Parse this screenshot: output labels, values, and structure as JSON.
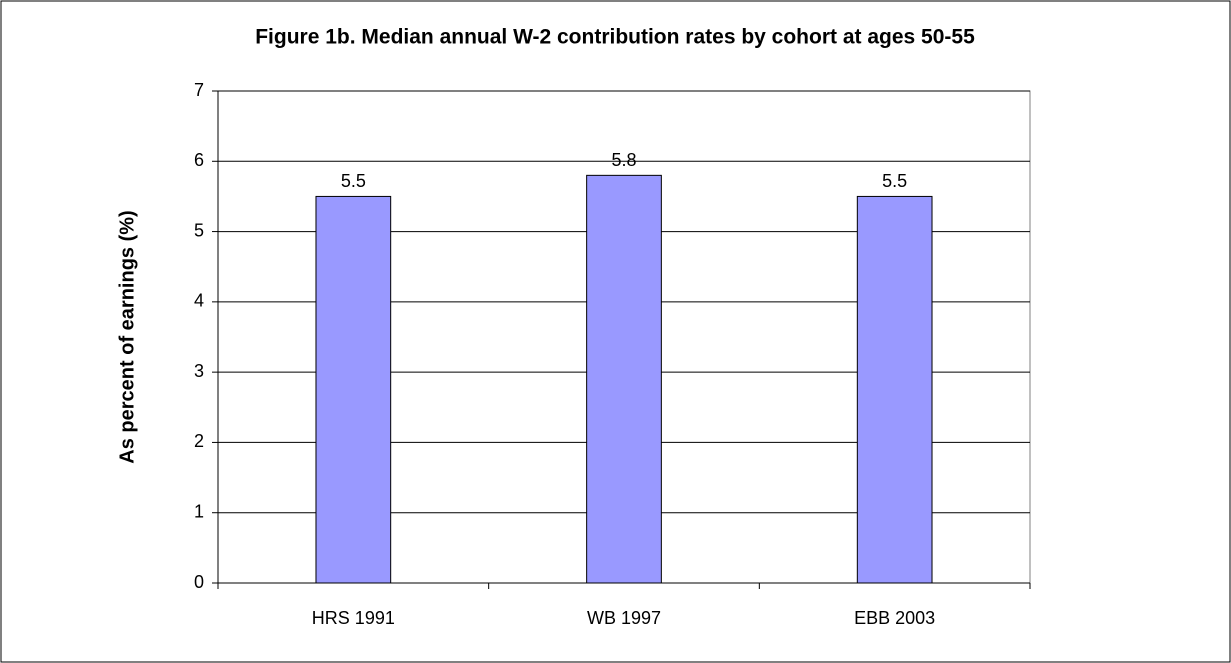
{
  "chart_data": {
    "type": "bar",
    "title": "Figure 1b. Median annual W-2 contribution rates by cohort at ages 50-55",
    "y_label": "As percent of earnings (%)",
    "categories": [
      "HRS 1991",
      "WB 1997",
      "EBB 2003"
    ],
    "values": [
      5.5,
      5.8,
      5.5
    ],
    "color": "#9999ff",
    "ylim": [
      0,
      7
    ],
    "yticks": [
      0,
      1,
      2,
      3,
      4,
      5,
      6,
      7
    ],
    "grid": true
  }
}
